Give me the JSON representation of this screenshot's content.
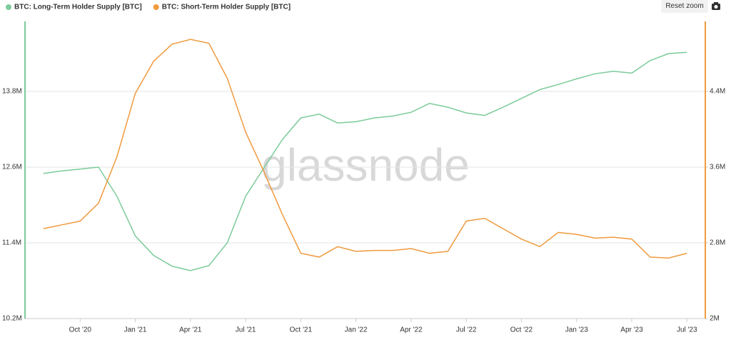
{
  "chart_data": {
    "type": "line",
    "watermark": "glassnode",
    "reset_button": "Reset zoom",
    "x": [
      "2020-08",
      "2020-09",
      "2020-10",
      "2020-11",
      "2020-12",
      "2021-01",
      "2021-02",
      "2021-03",
      "2021-04",
      "2021-05",
      "2021-06",
      "2021-07",
      "2021-08",
      "2021-09",
      "2021-10",
      "2021-11",
      "2021-12",
      "2022-01",
      "2022-02",
      "2022-03",
      "2022-04",
      "2022-05",
      "2022-06",
      "2022-07",
      "2022-08",
      "2022-09",
      "2022-10",
      "2022-11",
      "2022-12",
      "2023-01",
      "2023-02",
      "2023-03",
      "2023-04",
      "2023-05",
      "2023-06",
      "2023-07"
    ],
    "xlim": [
      "2020-07",
      "2023-08"
    ],
    "xticks": [
      {
        "value": "2020-10",
        "label": "Oct '20"
      },
      {
        "value": "2021-01",
        "label": "Jan '21"
      },
      {
        "value": "2021-04",
        "label": "Apr '21"
      },
      {
        "value": "2021-07",
        "label": "Jul '21"
      },
      {
        "value": "2021-10",
        "label": "Oct '21"
      },
      {
        "value": "2022-01",
        "label": "Jan '22"
      },
      {
        "value": "2022-04",
        "label": "Apr '22"
      },
      {
        "value": "2022-07",
        "label": "Jul '22"
      },
      {
        "value": "2022-10",
        "label": "Oct '22"
      },
      {
        "value": "2023-01",
        "label": "Jan '23"
      },
      {
        "value": "2023-04",
        "label": "Apr '23"
      },
      {
        "value": "2023-07",
        "label": "Jul '23"
      }
    ],
    "ylim": [
      10200000,
      14910000
    ],
    "yticks": [
      {
        "value": 10200000,
        "label": "10.2M"
      },
      {
        "value": 11400000,
        "label": "11.4M"
      },
      {
        "value": 12600000,
        "label": "12.6M"
      },
      {
        "value": 13800000,
        "label": "13.8M"
      }
    ],
    "y2lim": [
      2000000,
      5140000
    ],
    "y2ticks": [
      {
        "value": 2000000,
        "label": "2M"
      },
      {
        "value": 2800000,
        "label": "2.8M"
      },
      {
        "value": 3600000,
        "label": "3.6M"
      },
      {
        "value": 4400000,
        "label": "4.4M"
      }
    ],
    "grid": true,
    "series": [
      {
        "name": "BTC: Long-Term Holder Supply [BTC]",
        "color": "#7ccb9a",
        "values": [
          12500000,
          12540000,
          12570000,
          12600000,
          12140000,
          11510000,
          11200000,
          11030000,
          10960000,
          11040000,
          11400000,
          12140000,
          12590000,
          13040000,
          13380000,
          13440000,
          13300000,
          13320000,
          13380000,
          13410000,
          13470000,
          13610000,
          13550000,
          13460000,
          13420000,
          13550000,
          13690000,
          13830000,
          13910000,
          14000000,
          14080000,
          14120000,
          14090000,
          14290000,
          14400000,
          14420000
        ]
      },
      {
        "name": "BTC: Short-Term Holder Supply [BTC]",
        "color": "#f09a3e",
        "axis": "y2",
        "values": [
          2950000,
          2990000,
          3030000,
          3220000,
          3710000,
          4380000,
          4720000,
          4900000,
          4950000,
          4910000,
          4540000,
          3970000,
          3550000,
          3100000,
          2690000,
          2650000,
          2760000,
          2710000,
          2720000,
          2720000,
          2740000,
          2690000,
          2710000,
          3030000,
          3060000,
          2950000,
          2840000,
          2760000,
          2910000,
          2890000,
          2850000,
          2860000,
          2840000,
          2650000,
          2640000,
          2690000
        ]
      }
    ]
  }
}
